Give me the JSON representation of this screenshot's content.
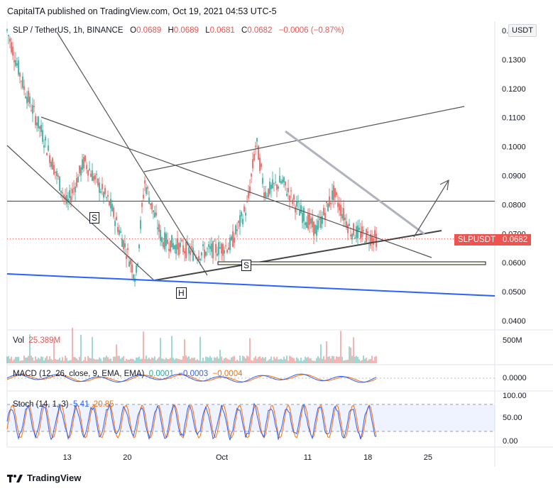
{
  "header": {
    "publish_line": "CapitalTA published on TradingView.com, Oct 19, 2021 04:53 UTC-5"
  },
  "legend": {
    "symbol": "SLP / TetherUS, 1h, BINANCE",
    "open_label": "O",
    "open": "0.0689",
    "high_label": "H",
    "high": "0.0689",
    "low_label": "L",
    "low": "0.0681",
    "close_label": "C",
    "close": "0.0682",
    "change": "−0.0006 (−0.87%)"
  },
  "currency_tag": "USDT",
  "price_axis": [
    "0.1400",
    "0.1300",
    "0.1200",
    "0.1100",
    "0.1000",
    "0.0900",
    "0.0800",
    "0.0700",
    "0.0600",
    "0.0500",
    "0.0400"
  ],
  "price_tag": {
    "symbol": "SLPUSDT",
    "value": "0.0682"
  },
  "annotations": {
    "s1": "S",
    "s2": "S",
    "h": "H"
  },
  "volume": {
    "label": "Vol",
    "value": "25.389M",
    "axis": "500M"
  },
  "macd": {
    "label": "MACD (12, 26, close, 9, EMA, EMA)",
    "v1": "0.0001",
    "v2": "−0.0003",
    "v3": "−0.0004",
    "axis": "0.0000"
  },
  "stoch": {
    "label": "Stoch (14, 1, 3)",
    "k": "5.41",
    "d": "20.85",
    "axis": [
      "100.00",
      "50.00",
      "0.00"
    ]
  },
  "x_axis": [
    "13",
    "20",
    "Oct",
    "11",
    "18",
    "25"
  ],
  "footer": {
    "brand": "TradingView"
  },
  "colors": {
    "up": "#26a69a",
    "down": "#ef5350",
    "blue_line": "#2962ff",
    "stoch_k": "#2962ff",
    "stoch_d": "#ff6d00"
  },
  "chart_data": {
    "type": "candlestick",
    "title": "SLP / TetherUS, 1h, BINANCE",
    "ylim": [
      0.04,
      0.142
    ],
    "horizontal_levels": [
      0.0812,
      0.0682
    ],
    "key_points": [
      {
        "date": "Sep 6",
        "price": 0.14
      },
      {
        "date": "Sep 8",
        "price": 0.12
      },
      {
        "date": "Sep 10",
        "price": 0.105
      },
      {
        "date": "Sep 13",
        "price": 0.08
      },
      {
        "date": "Sep 15",
        "price": 0.095
      },
      {
        "date": "Sep 18",
        "price": 0.08
      },
      {
        "date": "Sep 21",
        "price": 0.055
      },
      {
        "date": "Sep 22",
        "price": 0.088
      },
      {
        "date": "Sep 24",
        "price": 0.068
      },
      {
        "date": "Sep 28",
        "price": 0.063
      },
      {
        "date": "Oct 2",
        "price": 0.066
      },
      {
        "date": "Oct 4",
        "price": 0.08
      },
      {
        "date": "Oct 5",
        "price": 0.102
      },
      {
        "date": "Oct 6",
        "price": 0.084
      },
      {
        "date": "Oct 8",
        "price": 0.088
      },
      {
        "date": "Oct 10",
        "price": 0.078
      },
      {
        "date": "Oct 12",
        "price": 0.071
      },
      {
        "date": "Oct 14",
        "price": 0.084
      },
      {
        "date": "Oct 16",
        "price": 0.071
      },
      {
        "date": "Oct 19",
        "price": 0.0682
      }
    ]
  }
}
